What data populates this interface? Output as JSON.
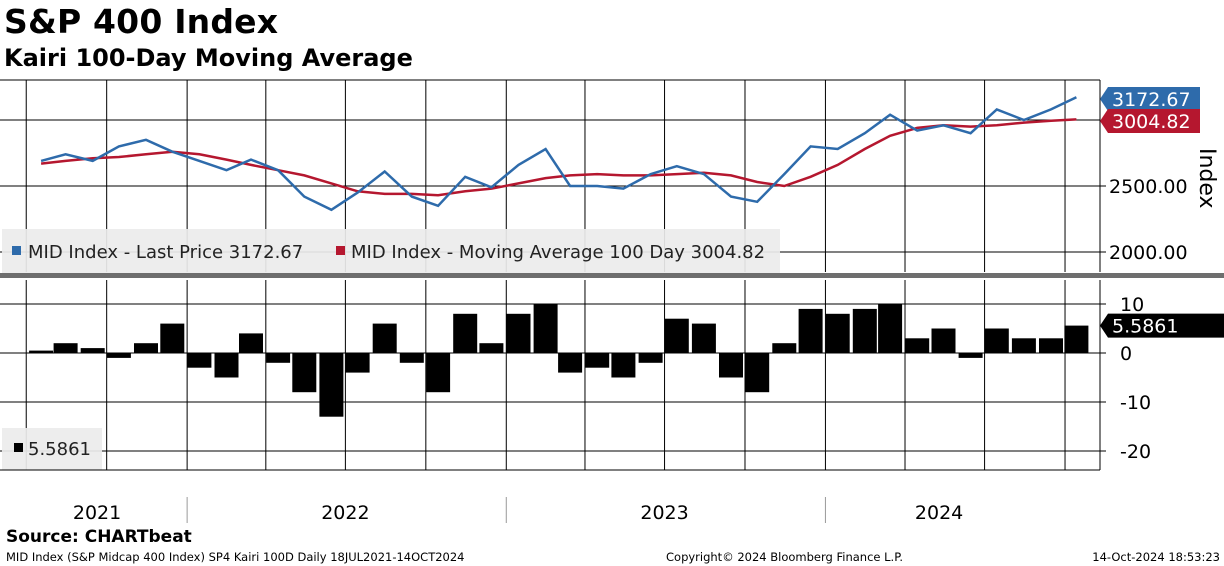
{
  "header": {
    "title": "S&P 400 Index",
    "subtitle": "Kairi 100-Day Moving Average"
  },
  "footer": {
    "source": "Source: CHARTbeat",
    "description": "MID Index (S&P Midcap 400 Index) SP4 Kairi 100D  Daily 18JUL2021-14OCT2024",
    "copyright": "Copyright© 2024 Bloomberg Finance L.P.",
    "timestamp": "14-Oct-2024 18:53:23"
  },
  "colors": {
    "price": "#2e6bab",
    "moving_average": "#b5172f",
    "kairi": "#000000",
    "grid": "#000000"
  },
  "chart_data": [
    {
      "type": "line",
      "panel": "upper",
      "ylabel": "Index",
      "yticks": [
        2000,
        2500
      ],
      "ytick_labels": [
        "2000.00",
        "2500.00"
      ],
      "x_labels": [
        "2021",
        "2022",
        "2023",
        "2024"
      ],
      "grid": true,
      "legend_position": "bottom-left",
      "x": [
        "2021-07-18",
        "2021-08-15",
        "2021-09-15",
        "2021-10-15",
        "2021-11-15",
        "2021-12-15",
        "2022-01-15",
        "2022-02-15",
        "2022-03-15",
        "2022-04-15",
        "2022-05-15",
        "2022-06-15",
        "2022-07-15",
        "2022-08-15",
        "2022-09-15",
        "2022-10-15",
        "2022-11-15",
        "2022-12-15",
        "2023-01-15",
        "2023-02-15",
        "2023-03-15",
        "2023-04-15",
        "2023-05-15",
        "2023-06-15",
        "2023-07-15",
        "2023-08-15",
        "2023-09-15",
        "2023-10-15",
        "2023-11-15",
        "2023-12-15",
        "2024-01-15",
        "2024-02-15",
        "2024-03-15",
        "2024-04-15",
        "2024-05-15",
        "2024-06-15",
        "2024-07-15",
        "2024-08-15",
        "2024-09-15",
        "2024-10-14"
      ],
      "series": [
        {
          "name": "MID Index - Last Price",
          "last_value": 3172.67,
          "value_label": "3172.67",
          "legend_label": "MID Index - Last Price 3172.67",
          "values": [
            2690,
            2740,
            2690,
            2800,
            2850,
            2760,
            2690,
            2620,
            2700,
            2620,
            2420,
            2320,
            2450,
            2610,
            2420,
            2350,
            2570,
            2490,
            2660,
            2780,
            2500,
            2500,
            2480,
            2590,
            2650,
            2590,
            2420,
            2380,
            2590,
            2800,
            2780,
            2900,
            3040,
            2920,
            2960,
            2900,
            3080,
            3000,
            3080,
            3172.67
          ]
        },
        {
          "name": "MID Index - Moving Average 100 Day",
          "last_value": 3004.82,
          "value_label": "3004.82",
          "legend_label": "MID Index - Moving Average 100 Day 3004.82",
          "values": [
            2670,
            2690,
            2710,
            2720,
            2740,
            2760,
            2740,
            2700,
            2660,
            2620,
            2580,
            2520,
            2460,
            2440,
            2440,
            2430,
            2460,
            2480,
            2520,
            2560,
            2580,
            2590,
            2580,
            2580,
            2590,
            2600,
            2580,
            2530,
            2500,
            2570,
            2660,
            2780,
            2880,
            2940,
            2960,
            2950,
            2960,
            2980,
            2995,
            3004.82
          ]
        }
      ]
    },
    {
      "type": "bar",
      "panel": "lower",
      "yticks": [
        10,
        0,
        -10,
        -20
      ],
      "ytick_labels": [
        "10",
        "0",
        "-10",
        "-20"
      ],
      "ylim": [
        -22,
        12
      ],
      "series": [
        {
          "name": "Kairi",
          "last_value": 5.5861,
          "value_label": "5.5861",
          "legend_label": "5.5861",
          "values": [
            0.5,
            2,
            1,
            -1,
            2,
            6,
            -3,
            -5,
            4,
            -2,
            -8,
            -13,
            -4,
            6,
            -2,
            -8,
            8,
            2,
            8,
            10,
            -4,
            -3,
            -5,
            -2,
            7,
            6,
            -5,
            -8,
            2,
            9,
            8,
            9,
            10,
            3,
            5,
            -1,
            5,
            3,
            3,
            5.5861
          ]
        }
      ]
    }
  ]
}
